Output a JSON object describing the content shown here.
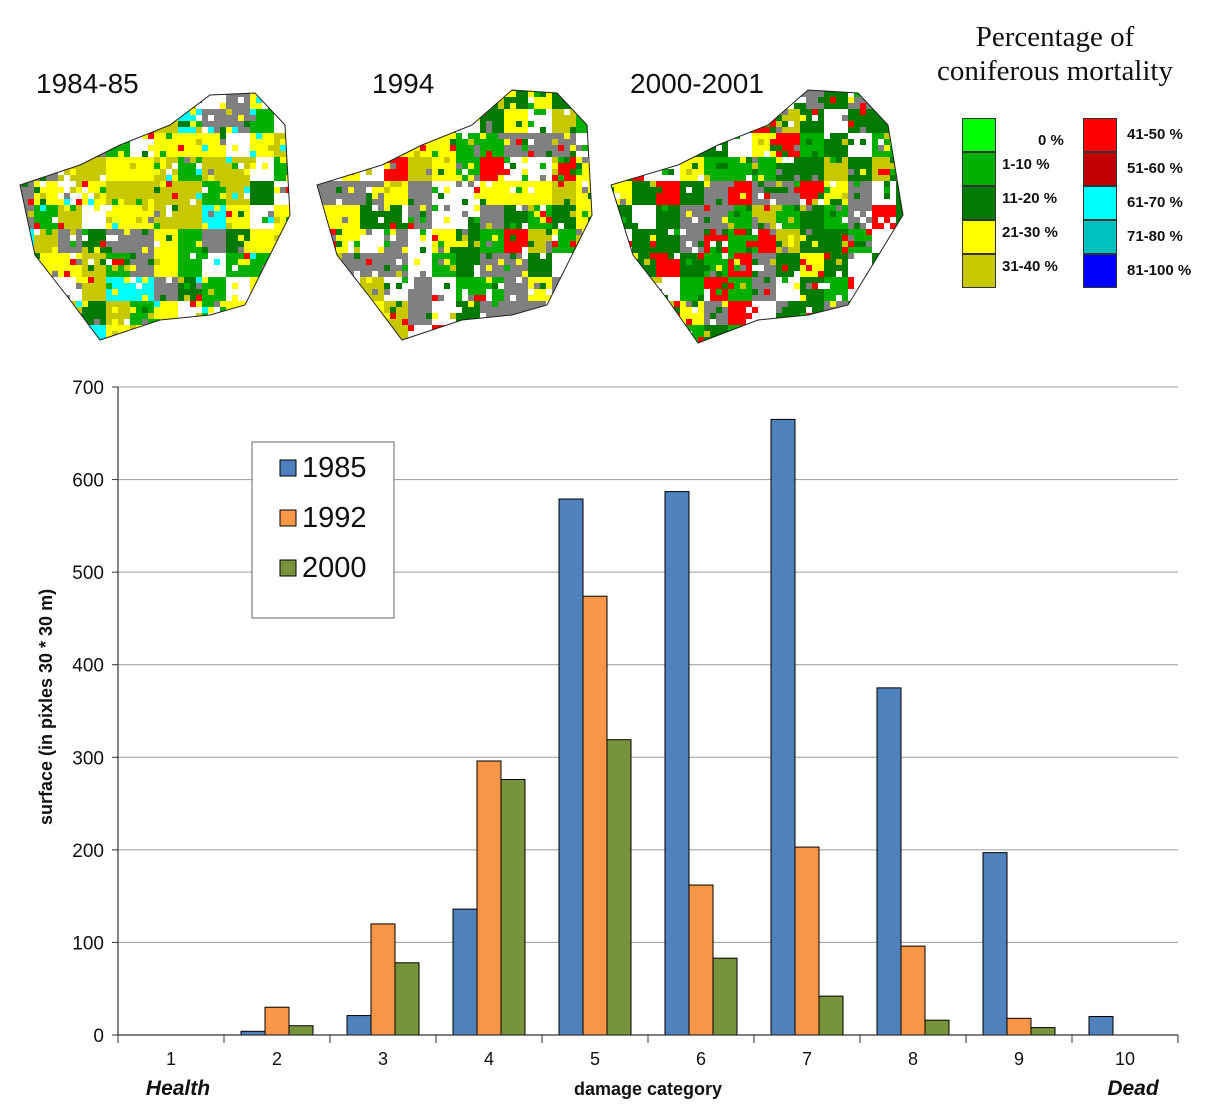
{
  "maps": {
    "labels": [
      "1984-85",
      "1994",
      "2000-2001"
    ]
  },
  "mortality_legend": {
    "title_line1": "Percentage of",
    "title_line2": "coniferous mortality",
    "items": [
      {
        "label": "0 %",
        "color": "#00ff00"
      },
      {
        "label": "1-10 %",
        "color": "#00b000"
      },
      {
        "label": "11-20 %",
        "color": "#007a00"
      },
      {
        "label": "21-30 %",
        "color": "#ffff00"
      },
      {
        "label": "31-40 %",
        "color": "#c8c800"
      },
      {
        "label": "41-50 %",
        "color": "#ff0000"
      },
      {
        "label": "51-60 %",
        "color": "#c00000"
      },
      {
        "label": "61-70 %",
        "color": "#00ffff"
      },
      {
        "label": "71-80 %",
        "color": "#00c0c0"
      },
      {
        "label": "81-100 %",
        "color": "#0000ff"
      }
    ]
  },
  "chart_data": {
    "type": "bar",
    "categories": [
      "1",
      "2",
      "3",
      "4",
      "5",
      "6",
      "7",
      "8",
      "9",
      "10"
    ],
    "series": [
      {
        "name": "1985",
        "color": "#4f81bd",
        "values": [
          0,
          4,
          21,
          136,
          579,
          587,
          665,
          375,
          197,
          20
        ]
      },
      {
        "name": "1992",
        "color": "#f79646",
        "values": [
          0,
          30,
          120,
          296,
          474,
          162,
          203,
          96,
          18,
          0
        ]
      },
      {
        "name": "2000",
        "color": "#77933c",
        "values": [
          0,
          10,
          78,
          276,
          319,
          83,
          42,
          16,
          8,
          0
        ]
      }
    ],
    "ylim": [
      0,
      700
    ],
    "yticks": [
      0,
      100,
      200,
      300,
      400,
      500,
      600,
      700
    ],
    "ylabel": "surface (in pixles 30 * 30 m)",
    "xlabel": "damage category",
    "x_left_label": "Health",
    "x_right_label": "Dead",
    "grid": true,
    "legend_position": "top-left"
  }
}
